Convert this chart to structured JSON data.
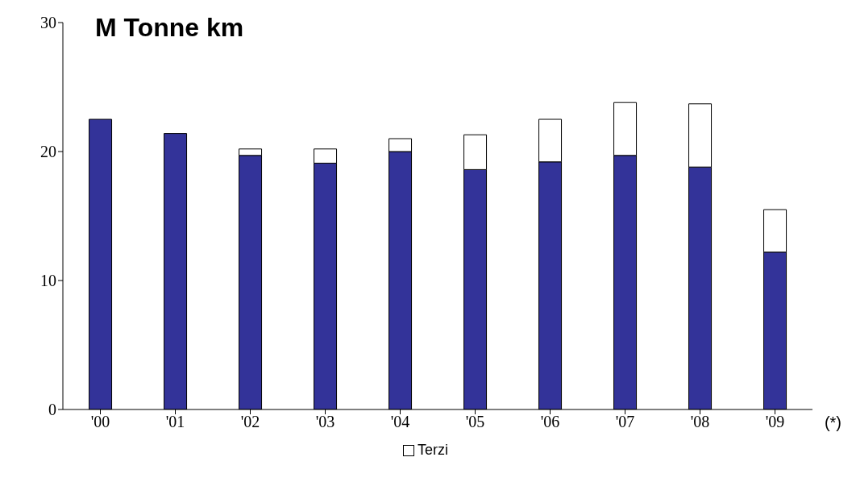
{
  "chart_data": {
    "type": "bar",
    "title": "M Tonne km",
    "categories": [
      "'00",
      "'01",
      "'02",
      "'03",
      "'04",
      "'05",
      "'06",
      "'07",
      "'08",
      "'09"
    ],
    "series": [
      {
        "color": "#333399",
        "values": [
          22.5,
          21.4,
          19.7,
          19.1,
          20.0,
          18.6,
          19.2,
          19.7,
          18.8,
          12.2
        ]
      },
      {
        "name": "Terzi",
        "color": "#ffffff",
        "values": [
          0,
          0,
          0.5,
          1.1,
          1.0,
          2.7,
          3.3,
          4.1,
          4.9,
          3.3
        ]
      }
    ],
    "stacked": true,
    "ylim": [
      0,
      30
    ],
    "yticks": [
      0,
      10,
      20,
      30
    ],
    "grid": false,
    "legend": "bottom",
    "annotations": [
      "(*)"
    ]
  }
}
